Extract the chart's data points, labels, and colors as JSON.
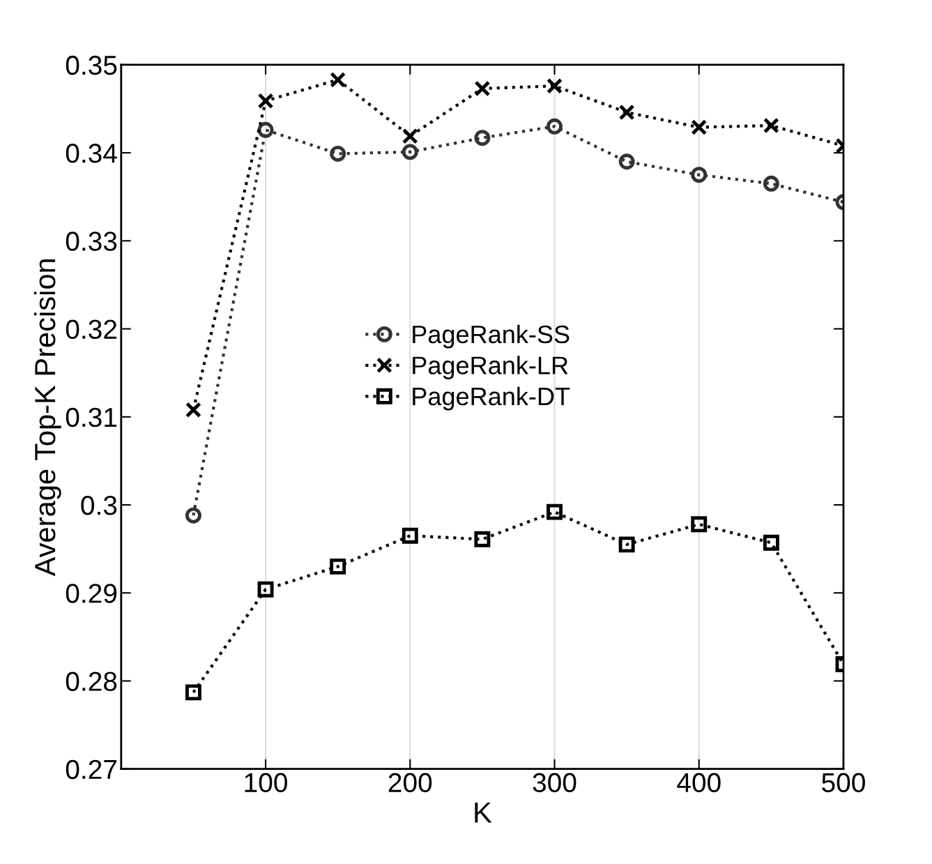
{
  "chart_data": {
    "type": "line",
    "xlabel": "K",
    "ylabel": "Average Top-K Precision",
    "x": [
      50,
      100,
      150,
      200,
      250,
      300,
      350,
      400,
      450,
      500
    ],
    "series": [
      {
        "name": "PageRank-SS",
        "color": "#333333",
        "marker": "circle",
        "values": [
          0.2988,
          0.3426,
          0.3399,
          0.3401,
          0.3417,
          0.343,
          0.339,
          0.3375,
          0.3365,
          0.3344
        ]
      },
      {
        "name": "PageRank-LR",
        "color": "#000000",
        "marker": "cross",
        "values": [
          0.3108,
          0.3459,
          0.3483,
          0.3419,
          0.3473,
          0.3476,
          0.3446,
          0.3429,
          0.3431,
          0.3408
        ]
      },
      {
        "name": "PageRank-DT",
        "color": "#000000",
        "marker": "square",
        "values": [
          0.2787,
          0.2904,
          0.293,
          0.2965,
          0.2961,
          0.2992,
          0.2955,
          0.2978,
          0.2957,
          0.2819
        ]
      }
    ],
    "line_style": "dotted",
    "xlim": [
      0,
      500
    ],
    "xticks": [
      100,
      200,
      300,
      400,
      500
    ],
    "ylim": [
      0.27,
      0.35
    ],
    "yticks": [
      0.27,
      0.28,
      0.29,
      0.3,
      0.31,
      0.32,
      0.33,
      0.34,
      0.35
    ],
    "grid": "x",
    "legend": "center"
  }
}
